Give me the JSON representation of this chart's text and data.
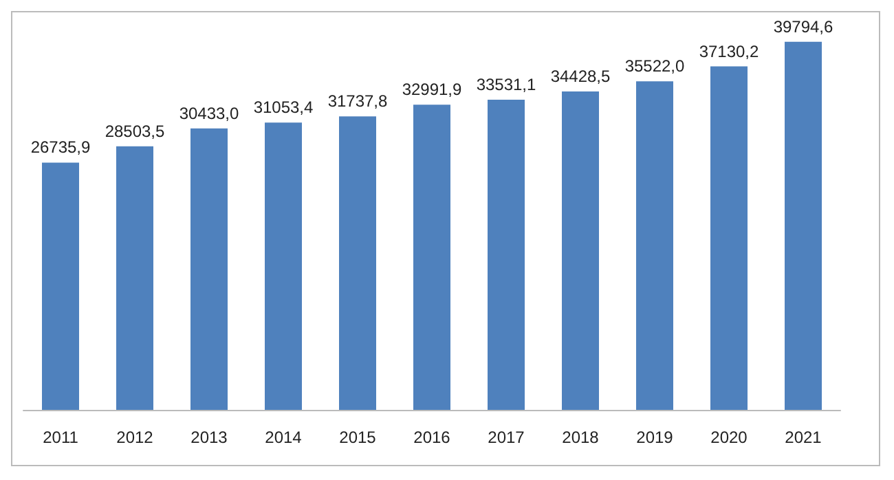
{
  "chart_data": {
    "type": "bar",
    "categories": [
      "2011",
      "2012",
      "2013",
      "2014",
      "2015",
      "2016",
      "2017",
      "2018",
      "2019",
      "2020",
      "2021"
    ],
    "values": [
      26735.9,
      28503.5,
      30433.0,
      31053.4,
      31737.8,
      32991.9,
      33531.1,
      34428.5,
      35522.0,
      37130.2,
      39794.6
    ],
    "value_labels": [
      "26735,9",
      "28503,5",
      "30433,0",
      "31053,4",
      "31737,8",
      "32991,9",
      "33531,1",
      "34428,5",
      "35522,0",
      "37130,2",
      "39794,6"
    ],
    "color": "#4f81bd"
  }
}
